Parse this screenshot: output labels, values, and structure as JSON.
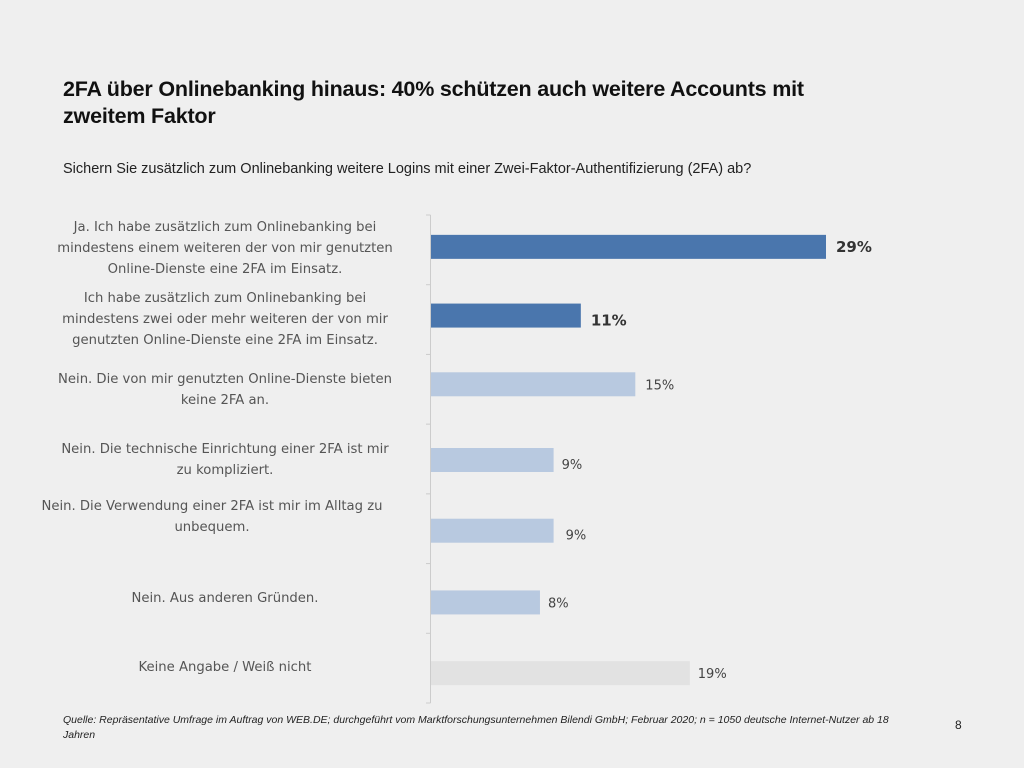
{
  "slide": {
    "title": "2FA über Onlinebanking hinaus: 40% schützen auch weitere Accounts mit zweitem Faktor",
    "question": "Sichern Sie zusätzlich zum Onlinebanking weitere Logins mit einer Zwei-Faktor-Authentifizierung (2FA) ab?",
    "footer": "Quelle: Repräsentative Umfrage im Auftrag von WEB.DE; durchgeführt vom Marktforschungsunternehmen Bilendi GmbH; Februar 2020; n = 1050 deutsche Internet-Nutzer ab 18 Jahren",
    "page_number": "8"
  },
  "chart_data": {
    "type": "bar",
    "orientation": "horizontal",
    "title": "Sichern Sie zusätzlich zum Onlinebanking weitere Logins mit einer Zwei-Faktor-Authentifizierung (2FA) ab?",
    "xlabel": "",
    "ylabel": "",
    "unit": "%",
    "xlim": [
      0,
      30
    ],
    "grid": false,
    "categories": [
      "Ja. Ich habe zusätzlich zum Onlinebanking bei mindestens einem weiteren der von mir genutzten Online-Dienste eine 2FA im Einsatz.",
      "Ich habe zusätzlich zum Onlinebanking bei mindestens zwei oder mehr weiteren der von mir genutzten Online-Dienste eine 2FA im Einsatz.",
      "Nein. Die von mir genutzten Online-Dienste bieten keine 2FA an.",
      "Nein. Die technische Einrichtung einer 2FA ist mir zu kompliziert.",
      "Nein. Die Verwendung einer 2FA ist mir im Alltag zu unbequem.",
      "Nein. Aus anderen Gründen.",
      "Keine Angabe / Weiß nicht"
    ],
    "category_lines": [
      [
        "Ja. Ich habe zusätzlich zum Onlinebanking bei",
        "mindestens einem weiteren der von mir genutzten",
        "Online-Dienste eine 2FA im Einsatz."
      ],
      [
        "Ich habe zusätzlich zum Onlinebanking bei",
        "mindestens zwei oder mehr weiteren der von mir",
        "genutzten Online-Dienste eine 2FA im Einsatz."
      ],
      [
        "Nein. Die von mir genutzten Online-Dienste bieten",
        "keine 2FA an."
      ],
      [
        "Nein. Die technische Einrichtung einer 2FA ist mir",
        "zu kompliziert."
      ],
      [
        "Nein. Die Verwendung einer 2FA ist mir im Alltag zu",
        "unbequem."
      ],
      [
        "Nein. Aus anderen Gründen."
      ],
      [
        "Keine Angabe / Weiß nicht"
      ]
    ],
    "values": [
      29,
      11,
      15,
      9,
      9,
      8,
      19
    ],
    "data_labels": [
      "29%",
      "11%",
      "15%",
      "9%",
      "9%",
      "8%",
      "19%"
    ],
    "bold_labels": [
      true,
      true,
      false,
      false,
      false,
      false,
      false
    ],
    "colors": [
      "#4a76ad",
      "#4a76ad",
      "#b8c9e0",
      "#b8c9e0",
      "#b8c9e0",
      "#b8c9e0",
      "#e2e2e2"
    ],
    "axis_color": "#cccccc"
  }
}
